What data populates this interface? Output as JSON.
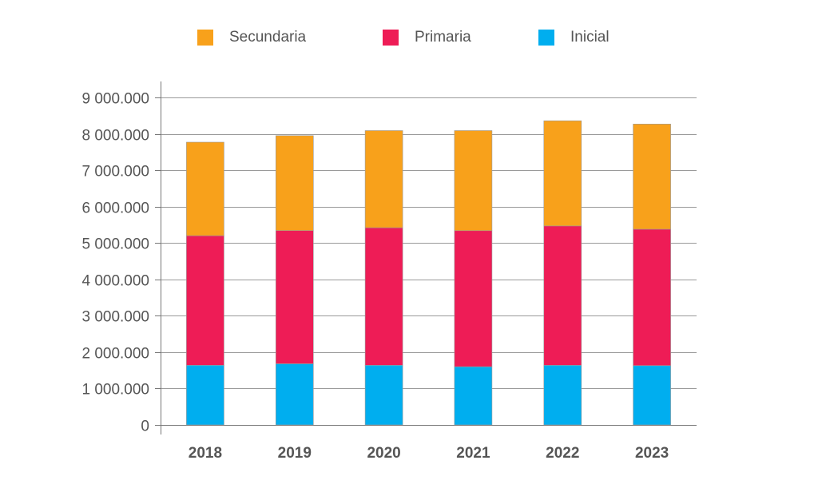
{
  "chart_data": {
    "type": "bar",
    "stacked": true,
    "categories": [
      "2018",
      "2019",
      "2020",
      "2021",
      "2022",
      "2023"
    ],
    "series": [
      {
        "name": "Inicial",
        "color": "#00AEEF",
        "values": [
          1640000,
          1680000,
          1640000,
          1600000,
          1640000,
          1630000
        ]
      },
      {
        "name": "Primaria",
        "color": "#EE1C56",
        "values": [
          3560000,
          3660000,
          3780000,
          3740000,
          3830000,
          3750000
        ]
      },
      {
        "name": "Secundaria",
        "color": "#F8A11B",
        "values": [
          2570000,
          2610000,
          2670000,
          2750000,
          2890000,
          2890000
        ]
      }
    ],
    "ylim": [
      0,
      9000000
    ],
    "yticks": [
      0,
      1000000,
      2000000,
      3000000,
      4000000,
      5000000,
      6000000,
      7000000,
      8000000,
      9000000
    ],
    "ytick_labels": [
      "0",
      "1 000.000",
      "2 000.000",
      "3 000.000",
      "4 000.000",
      "5 000.000",
      "6 000.000",
      "7 000.000",
      "8 000.000",
      "9 000.000"
    ],
    "title": "",
    "xlabel": "",
    "ylabel": "",
    "grid": true,
    "legend_position": "top",
    "legend_order": [
      "Secundaria",
      "Primaria",
      "Inicial"
    ]
  }
}
